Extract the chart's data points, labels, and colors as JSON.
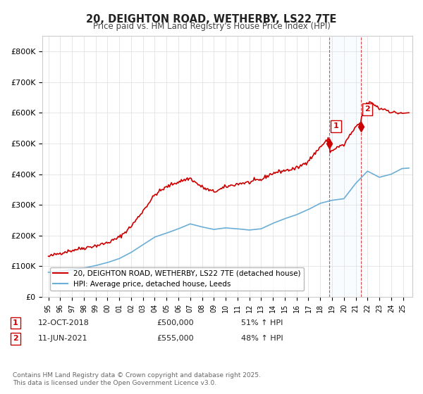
{
  "title1": "20, DEIGHTON ROAD, WETHERBY, LS22 7TE",
  "title2": "Price paid vs. HM Land Registry's House Price Index (HPI)",
  "xlabel": "",
  "ylabel": "",
  "ylim": [
    0,
    850000
  ],
  "yticks": [
    0,
    100000,
    200000,
    300000,
    400000,
    500000,
    600000,
    700000,
    800000
  ],
  "ytick_labels": [
    "£0",
    "£100K",
    "£200K",
    "£300K",
    "£400K",
    "£500K",
    "£600K",
    "£700K",
    "£800K"
  ],
  "hpi_color": "#6baed6",
  "price_color": "#cc0000",
  "sale1_date": "2018-10-12",
  "sale1_price": 500000,
  "sale1_label": "1",
  "sale2_date": "2021-06-11",
  "sale2_price": 555000,
  "sale2_label": "2",
  "legend_line1": "20, DEIGHTON ROAD, WETHERBY, LS22 7TE (detached house)",
  "legend_line2": "HPI: Average price, detached house, Leeds",
  "annotation1": "1   12-OCT-2018        £500,000        51% ↑ HPI",
  "annotation2": "2   11-JUN-2021        £555,000        48% ↑ HPI",
  "footnote": "Contains HM Land Registry data © Crown copyright and database right 2025.\nThis data is licensed under the Open Government Licence v3.0.",
  "background_color": "#ffffff",
  "grid_color": "#dddddd",
  "shade_color": "#ddeeff"
}
